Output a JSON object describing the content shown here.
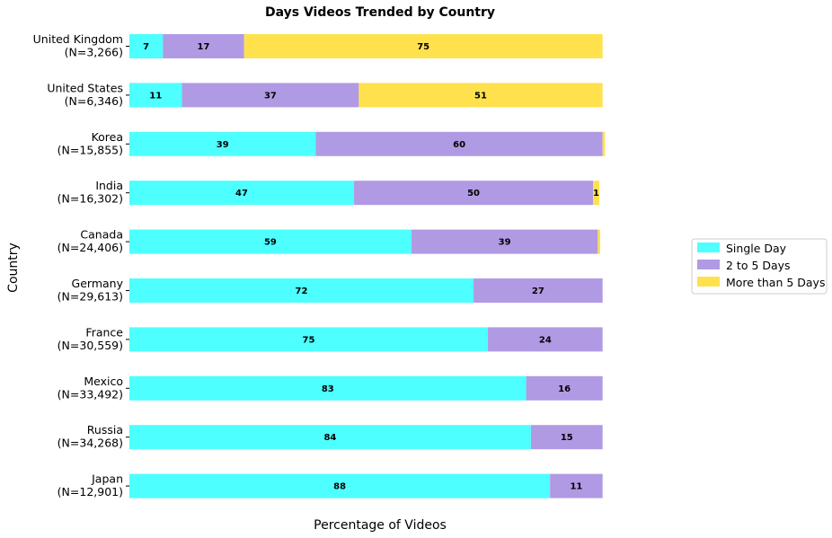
{
  "chart_data": {
    "type": "bar",
    "orientation": "horizontal",
    "stacked": true,
    "title": "Days Videos Trended by Country",
    "xlabel": "Percentage of Videos",
    "ylabel": "Country",
    "xlim": [
      0,
      100
    ],
    "categories": [
      {
        "name": "United Kingdom",
        "n": "(N=3,266)"
      },
      {
        "name": "United States",
        "n": "(N=6,346)"
      },
      {
        "name": "Korea",
        "n": "(N=15,855)"
      },
      {
        "name": "India",
        "n": "(N=16,302)"
      },
      {
        "name": "Canada",
        "n": "(N=24,406)"
      },
      {
        "name": "Germany",
        "n": "(N=29,613)"
      },
      {
        "name": "France",
        "n": "(N=30,559)"
      },
      {
        "name": "Mexico",
        "n": "(N=33,492)"
      },
      {
        "name": "Russia",
        "n": "(N=34,268)"
      },
      {
        "name": "Japan",
        "n": "(N=12,901)"
      }
    ],
    "series": [
      {
        "name": "Single Day",
        "color": "#4dffff",
        "values": [
          7,
          11,
          39,
          47,
          59,
          72,
          75,
          83,
          84,
          88
        ],
        "labels": [
          "7",
          "11",
          "39",
          "47",
          "59",
          "72",
          "75",
          "83",
          "84",
          "88"
        ]
      },
      {
        "name": "2 to 5 Days",
        "color": "#b19ae4",
        "values": [
          17,
          37,
          60,
          50,
          39,
          27,
          24,
          16,
          15,
          11
        ],
        "labels": [
          "17",
          "37",
          "60",
          "50",
          "39",
          "27",
          "24",
          "16",
          "15",
          "11"
        ]
      },
      {
        "name": "More than 5 Days",
        "color": "#ffe14d",
        "values": [
          75,
          51,
          0.5,
          1.3,
          0.5,
          0,
          0,
          0,
          0,
          0
        ],
        "labels": [
          "75",
          "51",
          "",
          "1",
          "",
          "",
          "",
          "",
          "",
          ""
        ]
      }
    ],
    "legend_position": "right",
    "grid": false
  }
}
